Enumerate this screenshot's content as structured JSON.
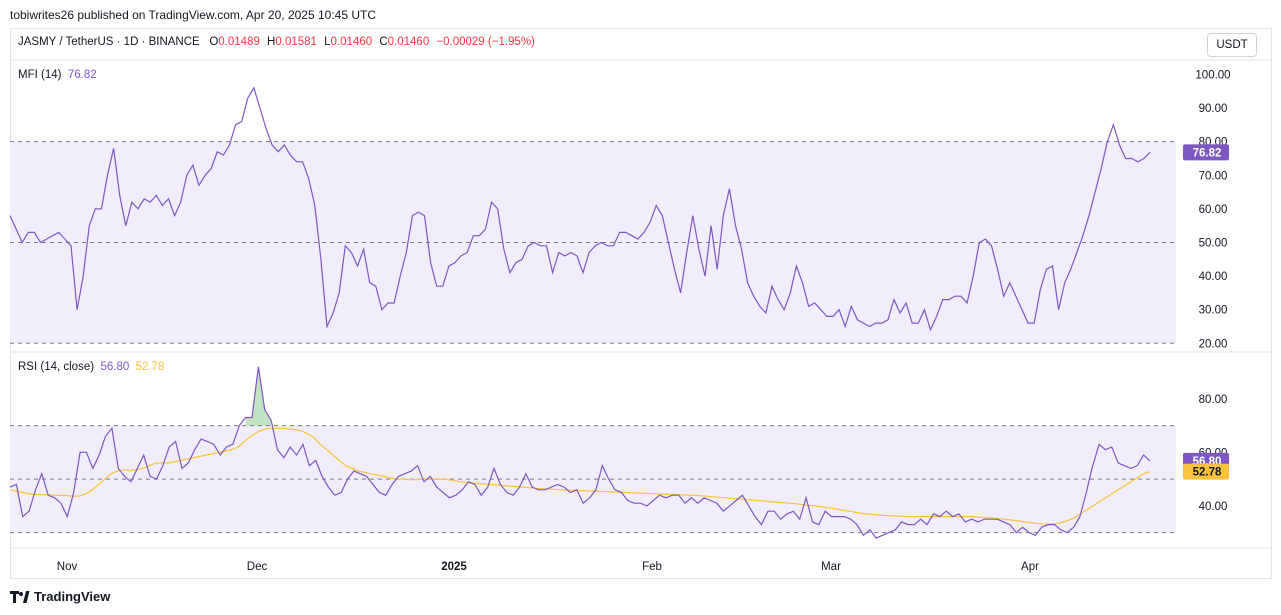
{
  "header": {
    "published": "tobiwrites26 published on TradingView.com, Apr 20, 2025 10:45 UTC"
  },
  "symbol": {
    "name": "JASMY / TetherUS · 1D · BINANCE",
    "o_label": "O",
    "o_value": "0.01489",
    "h_label": "H",
    "h_value": "0.01581",
    "l_label": "L",
    "l_value": "0.01460",
    "c_label": "C",
    "c_value": "0.01460",
    "change": "−0.00029 (−1.95%)"
  },
  "currency_button": "USDT",
  "footer": {
    "brand": "TradingView"
  },
  "colors": {
    "accent": "#7e57c2",
    "signal": "#f9c23c",
    "band": "#f1edfa",
    "negative": "#f23645"
  },
  "chart_data": [
    {
      "type": "line",
      "title": "MFI (14)",
      "last_value": "76.82",
      "ylim": [
        18,
        104
      ],
      "y_ticks": [
        "100.00",
        "90.00",
        "80.00",
        "70.00",
        "60.00",
        "50.00",
        "40.00",
        "30.00",
        "20.00"
      ],
      "bands": [
        80,
        50,
        20
      ],
      "series": [
        {
          "values": [
            58,
            54,
            50,
            53,
            53,
            50,
            51,
            52,
            53,
            51,
            49,
            30,
            40,
            55,
            60,
            60,
            70,
            78,
            64,
            55,
            62,
            60,
            63,
            62,
            64,
            61,
            63,
            58,
            62,
            70,
            73,
            67,
            70,
            72,
            77,
            76,
            79,
            85,
            86,
            93,
            96,
            90,
            84,
            79,
            77,
            79,
            76,
            74,
            74,
            69,
            61,
            45,
            25,
            29,
            35,
            49,
            47,
            43,
            48,
            38,
            37,
            30,
            32,
            32,
            40,
            47,
            58,
            59,
            58,
            44,
            37,
            37,
            43,
            44,
            46,
            47,
            52,
            52,
            54,
            62,
            60,
            48,
            41,
            44,
            45,
            49,
            50,
            49,
            49,
            41,
            47,
            46,
            47,
            46,
            41,
            47,
            49,
            50,
            49,
            49,
            53,
            53,
            52,
            51,
            53,
            56,
            61,
            58,
            50,
            42,
            35,
            47,
            58,
            48,
            40,
            55,
            42,
            58,
            66,
            55,
            48,
            38,
            34,
            31,
            29,
            37,
            33,
            30,
            35,
            43,
            38,
            31,
            32,
            30,
            28,
            28,
            30,
            25,
            31,
            27,
            26,
            25,
            26,
            26,
            27,
            33,
            29,
            32,
            26,
            26,
            30,
            24,
            28,
            33,
            33,
            34,
            34,
            32,
            40,
            50,
            51,
            49,
            42,
            34,
            38,
            34,
            30,
            26,
            26,
            36,
            42,
            43,
            30,
            38,
            42,
            47,
            52,
            58,
            65,
            72,
            80,
            85,
            79,
            75,
            75,
            74,
            75,
            76.82
          ]
        }
      ]
    },
    {
      "type": "line",
      "title": "RSI (14, close)",
      "rsi_value": "56.80",
      "ma_value": "52.78",
      "ylim": [
        25,
        96
      ],
      "y_ticks": [
        "80.00",
        "60.00",
        "40.00"
      ],
      "bands": [
        70,
        50,
        30
      ],
      "series": [
        {
          "values": [
            47,
            48,
            36,
            38,
            46,
            52,
            44,
            43,
            41,
            36,
            45,
            60,
            60,
            54,
            59,
            66,
            69,
            54,
            51,
            49,
            54,
            59,
            51,
            50,
            55,
            62,
            64,
            54,
            56,
            61,
            65,
            64,
            63,
            59,
            62,
            63,
            70,
            73,
            73,
            92,
            76,
            72,
            61,
            58,
            62,
            59,
            63,
            55,
            57,
            51,
            47,
            44,
            45,
            50,
            53,
            52,
            51,
            48,
            45,
            44,
            48,
            51,
            52,
            53,
            55,
            49,
            51,
            47,
            45,
            43,
            44,
            46,
            49,
            48,
            44,
            47,
            54,
            48,
            45,
            44,
            47,
            52,
            47,
            46,
            46,
            47,
            48,
            47,
            45,
            46,
            41,
            43,
            46,
            55,
            50,
            46,
            45,
            42,
            41,
            41,
            40,
            42,
            44,
            43,
            44,
            44,
            41,
            43,
            41,
            43,
            42,
            41,
            38,
            40,
            42,
            44,
            40,
            36,
            33,
            38,
            38,
            35,
            37,
            38,
            35,
            43,
            34,
            33,
            38,
            36,
            36,
            36,
            35,
            33,
            29,
            31,
            28,
            29,
            30,
            31,
            34,
            33,
            33,
            35,
            33,
            37,
            36,
            38,
            36,
            37,
            34,
            35,
            34,
            35,
            35,
            35,
            34,
            33,
            30,
            32,
            30,
            29,
            32,
            33,
            33,
            31,
            30,
            32,
            36,
            45,
            55,
            63,
            61,
            62,
            56,
            55,
            54,
            55,
            59,
            56.8
          ]
        },
        {
          "values": [
            46,
            45.5,
            45,
            44.5,
            44.3,
            44.2,
            44.1,
            44,
            43.9,
            43.8,
            43.6,
            43.7,
            44.5,
            46,
            48,
            50,
            52,
            53,
            53.5,
            53.2,
            53.5,
            54,
            55,
            56,
            56,
            56,
            56.5,
            57,
            57.5,
            58,
            58.5,
            59,
            59.5,
            60,
            60.5,
            61,
            62,
            64,
            66,
            67.5,
            68.5,
            69,
            69,
            69,
            68.8,
            68.5,
            68,
            67,
            65.5,
            63,
            61,
            59,
            57,
            55,
            54,
            53,
            52.5,
            52,
            51.5,
            51,
            50.5,
            50,
            50,
            49.8,
            49.8,
            49.9,
            50,
            50,
            50,
            49.8,
            49.5,
            49,
            48.8,
            48.5,
            48.3,
            48.2,
            48,
            47.8,
            47.6,
            47.4,
            47.2,
            47,
            46.8,
            46.6,
            46.4,
            46.3,
            46.2,
            46,
            45.9,
            45.8,
            45.7,
            45.6,
            45.5,
            45.4,
            45.3,
            45.2,
            45.1,
            45,
            44.9,
            44.8,
            44.7,
            44.6,
            44.5,
            44.4,
            44.3,
            44.2,
            44.1,
            44,
            43.9,
            43.8,
            43.6,
            43.4,
            43.2,
            43,
            42.8,
            42.6,
            42.4,
            42.2,
            42,
            41.8,
            41.6,
            41.4,
            41.2,
            41,
            40.8,
            40.5,
            40.2,
            40,
            39.7,
            39.4,
            39,
            38.6,
            38.2,
            37.8,
            37.4,
            37,
            36.8,
            36.6,
            36.4,
            36.3,
            36.2,
            36.1,
            36,
            36,
            36,
            36,
            36,
            36,
            36,
            36,
            36,
            36,
            36,
            35.8,
            35.6,
            35.4,
            35.2,
            35,
            34.7,
            34.4,
            34.1,
            33.8,
            33.5,
            33.3,
            33.2,
            33.3,
            33.8,
            34.5,
            35.5,
            37,
            38.5,
            40,
            41.5,
            43,
            44.5,
            46,
            47.5,
            49,
            50.5,
            52,
            52.78
          ]
        }
      ],
      "overbought_fill_color": "#4caf50"
    },
    {
      "type": "axis",
      "x_ticks": [
        "Nov",
        "Dec",
        "2025",
        "Feb",
        "Mar",
        "Apr"
      ]
    }
  ]
}
